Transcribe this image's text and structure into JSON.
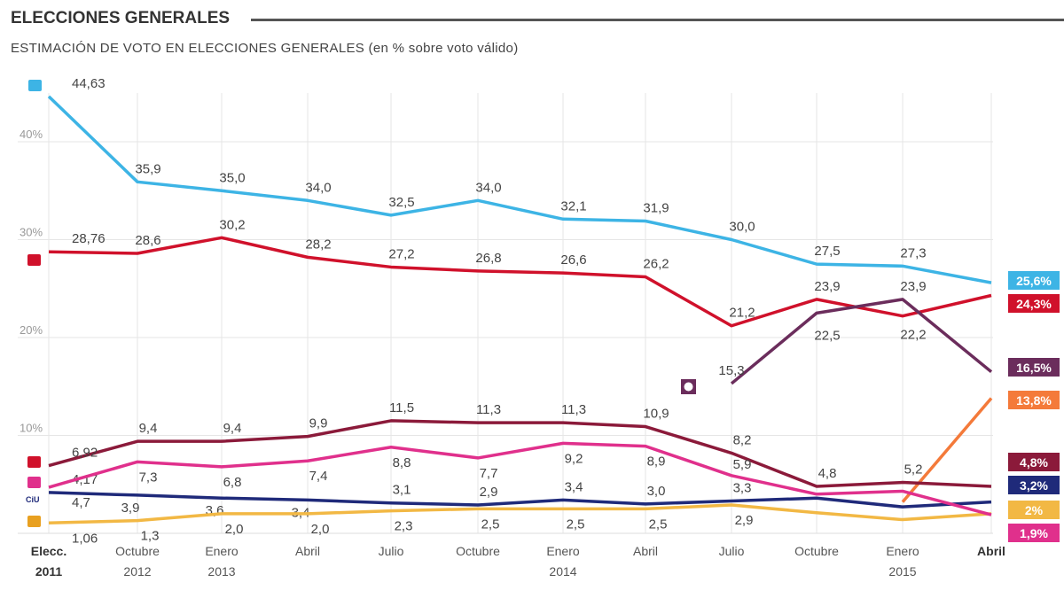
{
  "header": {
    "title": "ELECCIONES GENERALES",
    "subtitle": "ESTIMACIÓN DE VOTO EN ELECCIONES GENERALES  (en % sobre voto válido)"
  },
  "chart_data": {
    "type": "line",
    "title": "ELECCIONES GENERALES",
    "subtitle": "ESTIMACIÓN DE VOTO EN ELECCIONES GENERALES  (en % sobre voto válido)",
    "xlabel": "",
    "ylabel": "",
    "ylim": [
      0,
      45
    ],
    "yticks": [
      10,
      20,
      30,
      40
    ],
    "ytick_labels": [
      "10%",
      "20%",
      "30%",
      "40%"
    ],
    "grid": true,
    "categories": [
      [
        "Elecc.",
        "2011"
      ],
      [
        "Octubre",
        "2012"
      ],
      [
        "Enero",
        "2013"
      ],
      [
        "Abril",
        ""
      ],
      [
        "Julio",
        ""
      ],
      [
        "Octubre",
        ""
      ],
      [
        "Enero",
        "2014"
      ],
      [
        "Abril",
        ""
      ],
      [
        "Julio",
        ""
      ],
      [
        "Octubre",
        ""
      ],
      [
        "Enero",
        "2015"
      ],
      [
        "Abril",
        ""
      ]
    ],
    "series": [
      {
        "icon": "pp-logo-icon",
        "color": "#3db4e5",
        "values": [
          44.63,
          35.9,
          35.0,
          34.0,
          32.5,
          34.0,
          32.1,
          31.9,
          30.0,
          27.5,
          27.3,
          25.6
        ],
        "labels": [
          "44,63",
          "35,9",
          "35,0",
          "34,0",
          "32,5",
          "34,0",
          "32,1",
          "31,9",
          "30,0",
          "27,5",
          "27,3",
          null
        ],
        "end_label": "25,6%"
      },
      {
        "icon": "psoe-logo-icon",
        "color": "#d0112b",
        "values": [
          28.76,
          28.6,
          30.2,
          28.2,
          27.2,
          26.8,
          26.6,
          26.2,
          21.2,
          23.9,
          22.2,
          24.3
        ],
        "labels": [
          "28,76",
          "28,6",
          "30,2",
          "28,2",
          "27,2",
          "26,8",
          "26,6",
          "26,2",
          "21,2",
          "23,9",
          "22,2",
          null
        ],
        "end_label": "24,3%"
      },
      {
        "icon": "podemos-logo-icon",
        "color": "#6b2d5c",
        "values": [
          null,
          null,
          null,
          null,
          null,
          null,
          null,
          null,
          15.3,
          22.5,
          23.9,
          16.5
        ],
        "labels": [
          null,
          null,
          null,
          null,
          null,
          null,
          null,
          null,
          "15,3",
          "22,5",
          "23,9",
          null
        ],
        "end_label": "16,5%"
      },
      {
        "icon": "ciudadanos-logo-icon",
        "color": "#f47a3a",
        "values": [
          null,
          null,
          null,
          null,
          null,
          null,
          null,
          null,
          null,
          null,
          3.2,
          13.8
        ],
        "labels": [
          null,
          null,
          null,
          null,
          null,
          null,
          null,
          null,
          null,
          null,
          null,
          null
        ],
        "end_label": "13,8%"
      },
      {
        "icon": "iu-logo-icon",
        "color": "#8b1a3a",
        "values": [
          6.92,
          9.4,
          9.4,
          9.9,
          11.5,
          11.3,
          11.3,
          10.9,
          8.2,
          4.8,
          5.2,
          4.8
        ],
        "labels": [
          "6,92",
          "9,4",
          "9,4",
          "9,9",
          "11,5",
          "11,3",
          "11,3",
          "10,9",
          "8,2",
          "4,8",
          "5,2",
          null
        ],
        "end_label": "4,8%"
      },
      {
        "icon": "ciu-logo-icon",
        "color": "#1f2a7a",
        "values": [
          4.17,
          3.9,
          3.6,
          3.4,
          3.1,
          2.9,
          3.4,
          3.0,
          3.3,
          3.6,
          2.7,
          3.2
        ],
        "labels": [
          "4,17",
          "3,9",
          "3,6",
          "3,4",
          "3,1",
          "2,9",
          "3,4",
          "3,0",
          "3,3",
          null,
          null,
          null
        ],
        "end_label": "3,2%"
      },
      {
        "icon": "amaiur-logo-icon",
        "color": "#f2b844",
        "values": [
          1.06,
          1.3,
          2.0,
          2.0,
          2.3,
          2.5,
          2.5,
          2.5,
          2.9,
          2.1,
          1.4,
          2.0
        ],
        "labels": [
          "1,06",
          "1,3",
          "2,0",
          "2,0",
          "2,3",
          "2,5",
          "2,5",
          "2,5",
          "2,9",
          null,
          null,
          null
        ],
        "end_label": "2%",
        "end_text_color": "#333"
      },
      {
        "icon": "upyd-logo-icon",
        "color": "#e0308c",
        "values": [
          4.7,
          7.3,
          6.8,
          7.4,
          8.8,
          7.7,
          9.2,
          8.9,
          5.9,
          4.0,
          4.3,
          1.9
        ],
        "labels": [
          "4,7",
          "7,3",
          "6,8",
          "7,4",
          "8,8",
          "7,7",
          "9,2",
          "8,9",
          "5,9",
          null,
          null,
          null
        ],
        "end_label": "1,9%"
      }
    ]
  }
}
